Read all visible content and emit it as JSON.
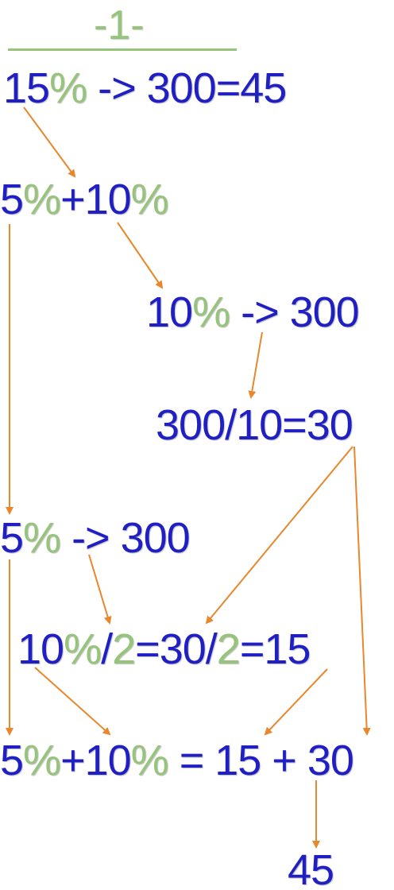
{
  "title": "-1-",
  "colors": {
    "number": "#1f1fc4",
    "percent": "#95c47a",
    "arrow": "#e8872c"
  },
  "lines": [
    {
      "id": "line1",
      "segments": [
        {
          "text": "15",
          "color": "b"
        },
        {
          "text": "%",
          "color": "g"
        },
        {
          "text": " -> 300=45",
          "color": "b"
        }
      ]
    },
    {
      "id": "line2",
      "segments": [
        {
          "text": "5",
          "color": "b"
        },
        {
          "text": "%",
          "color": "g"
        },
        {
          "text": "+10",
          "color": "b"
        },
        {
          "text": "%",
          "color": "g"
        }
      ]
    },
    {
      "id": "line3",
      "segments": [
        {
          "text": "10",
          "color": "b"
        },
        {
          "text": "%",
          "color": "g"
        },
        {
          "text": " -> 300",
          "color": "b"
        }
      ]
    },
    {
      "id": "line4",
      "segments": [
        {
          "text": "300/10=30",
          "color": "b"
        }
      ]
    },
    {
      "id": "line5",
      "segments": [
        {
          "text": "5",
          "color": "b"
        },
        {
          "text": "%",
          "color": "g"
        },
        {
          "text": " -> 300",
          "color": "b"
        }
      ]
    },
    {
      "id": "line6",
      "segments": [
        {
          "text": "10",
          "color": "b"
        },
        {
          "text": "%",
          "color": "g"
        },
        {
          "text": "/",
          "color": "b"
        },
        {
          "text": "2",
          "color": "g"
        },
        {
          "text": "=30/",
          "color": "b"
        },
        {
          "text": "2",
          "color": "g"
        },
        {
          "text": "=15",
          "color": "b"
        }
      ]
    },
    {
      "id": "line7",
      "segments": [
        {
          "text": "5",
          "color": "b"
        },
        {
          "text": "%",
          "color": "g"
        },
        {
          "text": "+10",
          "color": "b"
        },
        {
          "text": "%",
          "color": "g"
        },
        {
          "text": " = 15 + 30",
          "color": "b"
        }
      ]
    },
    {
      "id": "line8",
      "segments": [
        {
          "text": "45",
          "color": "b"
        }
      ]
    }
  ]
}
